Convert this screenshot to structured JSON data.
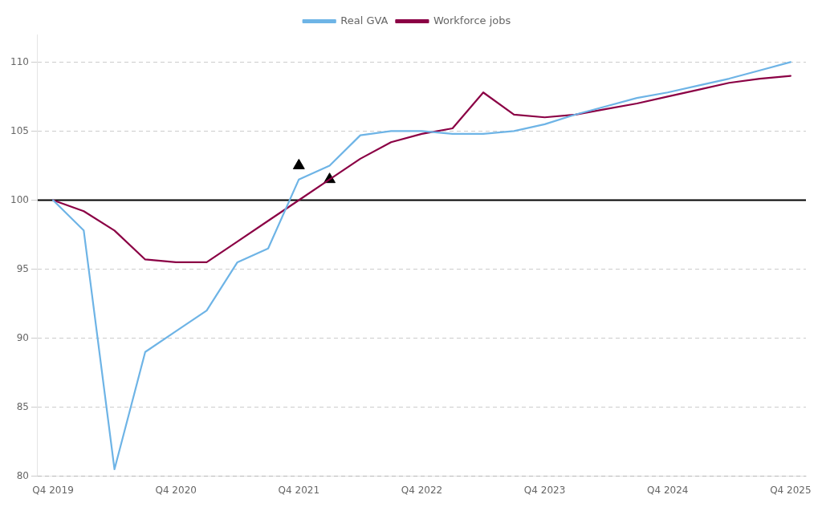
{
  "chart_data": {
    "type": "line",
    "categories": [
      "Q4 2019",
      null,
      null,
      null,
      "Q4 2020",
      null,
      null,
      null,
      "Q4 2021",
      null,
      null,
      null,
      "Q4 2022",
      null,
      null,
      null,
      "Q4 2023",
      null,
      null,
      null,
      "Q4 2024",
      null,
      null,
      null,
      "Q4 2025"
    ],
    "series": [
      {
        "name": "Real GVA",
        "color": "#6EB4E6",
        "values": [
          100,
          97.8,
          80.5,
          89.0,
          90.5,
          92.0,
          95.5,
          96.5,
          101.5,
          102.5,
          104.7,
          105.0,
          105.0,
          104.8,
          104.8,
          105.0,
          105.5,
          106.2,
          106.8,
          107.4,
          107.8,
          108.3,
          108.8,
          109.4,
          110.0
        ]
      },
      {
        "name": "Workforce jobs",
        "color": "#8B0045",
        "values": [
          100,
          99.2,
          97.8,
          95.7,
          95.5,
          95.5,
          97.0,
          98.5,
          100.0,
          101.5,
          103.0,
          104.2,
          104.8,
          105.2,
          107.8,
          106.2,
          106.0,
          106.2,
          106.6,
          107.0,
          107.5,
          108.0,
          108.5,
          108.8,
          109.0
        ]
      },
      {
        "type": "scatter",
        "color": "#000000",
        "marker": "triangle",
        "line_style": "none",
        "values": [
          null,
          null,
          null,
          null,
          null,
          null,
          null,
          null,
          102.5,
          101.5,
          null,
          null,
          null,
          null,
          null,
          null,
          null,
          null,
          null,
          null,
          null,
          null,
          null,
          null,
          null
        ]
      }
    ],
    "reference_line": {
      "y": 100,
      "color": "#000000"
    },
    "ylim": [
      80,
      112
    ],
    "yticks": [
      80,
      85,
      90,
      95,
      100,
      105,
      110
    ],
    "grid": "y",
    "legend": "top"
  }
}
